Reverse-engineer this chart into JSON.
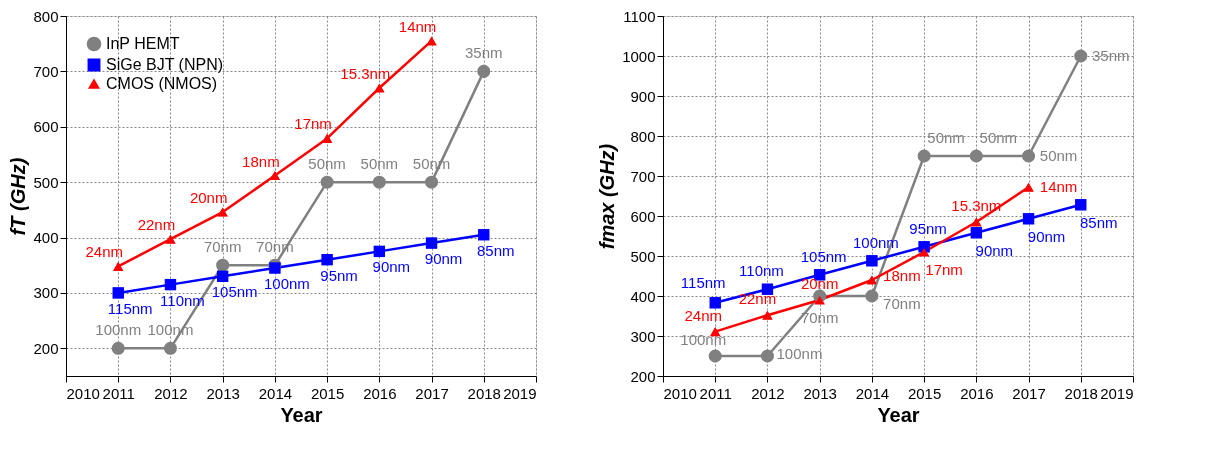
{
  "chart_data": [
    {
      "type": "line",
      "xlabel": "Year",
      "ylabel": "fT (GHz)",
      "x": [
        2011,
        2012,
        2013,
        2014,
        2015,
        2016,
        2017,
        2018
      ],
      "xlim": [
        2010,
        2019
      ],
      "xticks": [
        2010,
        2011,
        2012,
        2013,
        2014,
        2015,
        2016,
        2017,
        2018,
        2019
      ],
      "ylim": [
        150,
        800
      ],
      "yticks": [
        200,
        300,
        400,
        500,
        600,
        700,
        800
      ],
      "grid": true,
      "legend": "top left",
      "series": [
        {
          "name": "InP HEMT",
          "color": "#808080",
          "marker": "circle",
          "values": [
            200,
            200,
            350,
            350,
            500,
            500,
            500,
            700
          ]
        },
        {
          "name": "SiGe BJT (NPN)",
          "color": "#0000ff",
          "marker": "square",
          "values": [
            300,
            315,
            330,
            345,
            360,
            375,
            390,
            405
          ]
        },
        {
          "name": "CMOS (NMOS)",
          "color": "#ff0000",
          "marker": "triangle",
          "values": [
            348,
            397,
            446,
            512,
            579,
            670,
            755,
            null
          ]
        }
      ],
      "annotations": [
        {
          "text": "100nm",
          "x": 2011,
          "y": 200
        },
        {
          "text": "100nm",
          "x": 2012,
          "y": 200
        },
        {
          "text": "70nm",
          "x": 2013,
          "y": 350
        },
        {
          "text": "70nm",
          "x": 2014,
          "y": 350
        },
        {
          "text": "50nm",
          "x": 2015,
          "y": 500
        },
        {
          "text": "50nm",
          "x": 2016,
          "y": 500
        },
        {
          "text": "50nm",
          "x": 2017,
          "y": 500
        },
        {
          "text": "35nm",
          "x": 2018,
          "y": 700
        },
        {
          "text": "115nm",
          "x": 2011,
          "y": 300
        },
        {
          "text": "110nm",
          "x": 2012,
          "y": 315
        },
        {
          "text": "105nm",
          "x": 2013,
          "y": 330
        },
        {
          "text": "100nm",
          "x": 2014,
          "y": 345
        },
        {
          "text": "95nm",
          "x": 2015,
          "y": 360
        },
        {
          "text": "90nm",
          "x": 2016,
          "y": 375
        },
        {
          "text": "90nm",
          "x": 2017,
          "y": 390
        },
        {
          "text": "85nm",
          "x": 2018,
          "y": 405
        },
        {
          "text": "24nm",
          "x": 2011,
          "y": 348
        },
        {
          "text": "22nm",
          "x": 2012,
          "y": 397
        },
        {
          "text": "20nm",
          "x": 2013,
          "y": 446
        },
        {
          "text": "18nm",
          "x": 2014,
          "y": 512
        },
        {
          "text": "17nm",
          "x": 2015,
          "y": 579
        },
        {
          "text": "15.3nm",
          "x": 2016,
          "y": 670
        },
        {
          "text": "14nm",
          "x": 2017,
          "y": 755
        }
      ]
    },
    {
      "type": "line",
      "xlabel": "Year",
      "ylabel": "fmax (GHz)",
      "x": [
        2011,
        2012,
        2013,
        2014,
        2015,
        2016,
        2017,
        2018
      ],
      "xlim": [
        2010,
        2019
      ],
      "xticks": [
        2010,
        2011,
        2012,
        2013,
        2014,
        2015,
        2016,
        2017,
        2018,
        2019
      ],
      "ylim": [
        200,
        1100
      ],
      "yticks": [
        200,
        300,
        400,
        500,
        600,
        700,
        800,
        900,
        1000,
        1100
      ],
      "grid": true,
      "legend": "top left",
      "series": [
        {
          "name": "InP HEMT",
          "color": "#808080",
          "marker": "circle",
          "values": [
            250,
            250,
            400,
            400,
            750,
            750,
            750,
            1000
          ]
        },
        {
          "name": "SiGe BJT (NPN)",
          "color": "#0000ff",
          "marker": "square",
          "values": [
            383,
            417,
            453,
            488,
            523,
            558,
            593,
            628
          ]
        },
        {
          "name": "CMOS (NMOS)",
          "color": "#ff0000",
          "marker": "triangle",
          "values": [
            311,
            352,
            390,
            440,
            510,
            585,
            672,
            null
          ]
        }
      ],
      "annotations": [
        {
          "text": "100nm",
          "x": 2011,
          "y": 250
        },
        {
          "text": "100nm",
          "x": 2012,
          "y": 250
        },
        {
          "text": "70nm",
          "x": 2013,
          "y": 400
        },
        {
          "text": "70nm",
          "x": 2014,
          "y": 400
        },
        {
          "text": "50nm",
          "x": 2015,
          "y": 750
        },
        {
          "text": "50nm",
          "x": 2016,
          "y": 750
        },
        {
          "text": "50nm",
          "x": 2017,
          "y": 750
        },
        {
          "text": "35nm",
          "x": 2018,
          "y": 1000
        },
        {
          "text": "115nm",
          "x": 2011,
          "y": 383
        },
        {
          "text": "110nm",
          "x": 2012,
          "y": 417
        },
        {
          "text": "105nm",
          "x": 2013,
          "y": 453
        },
        {
          "text": "100nm",
          "x": 2014,
          "y": 488
        },
        {
          "text": "95nm",
          "x": 2015,
          "y": 523
        },
        {
          "text": "90nm",
          "x": 2016,
          "y": 558
        },
        {
          "text": "90nm",
          "x": 2017,
          "y": 593
        },
        {
          "text": "85nm",
          "x": 2018,
          "y": 628
        },
        {
          "text": "24nm",
          "x": 2011,
          "y": 311
        },
        {
          "text": "22nm",
          "x": 2012,
          "y": 352
        },
        {
          "text": "20nm",
          "x": 2013,
          "y": 390
        },
        {
          "text": "18nm",
          "x": 2014,
          "y": 440
        },
        {
          "text": "17nm",
          "x": 2015,
          "y": 510
        },
        {
          "text": "15.3nm",
          "x": 2016,
          "y": 585
        },
        {
          "text": "14nm",
          "x": 2017,
          "y": 672
        }
      ]
    }
  ]
}
